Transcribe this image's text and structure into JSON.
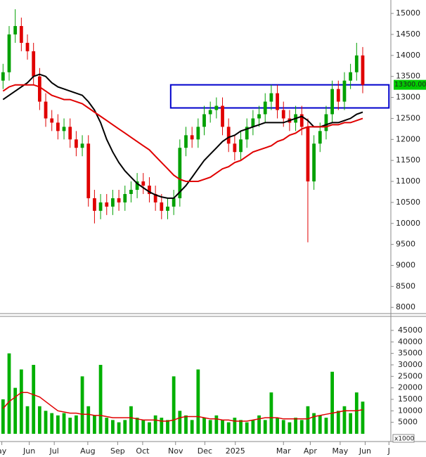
{
  "chart_data": {
    "type": "candlestick",
    "xlim": [
      -0.5,
      63.5
    ],
    "xticks": [
      {
        "value": -0.2,
        "label": "ay"
      },
      {
        "value": 4.3,
        "label": "Jun"
      },
      {
        "value": 8.4,
        "label": "Jul"
      },
      {
        "value": 13.9,
        "label": "Aug"
      },
      {
        "value": 18.8,
        "label": "Sep"
      },
      {
        "value": 22.9,
        "label": "Oct"
      },
      {
        "value": 28.3,
        "label": "Nov"
      },
      {
        "value": 33.1,
        "label": "Dec"
      },
      {
        "value": 38.1,
        "label": "2025"
      },
      {
        "value": 46,
        "label": "Mar"
      },
      {
        "value": 50.4,
        "label": "Apr"
      },
      {
        "value": 55.3,
        "label": "May"
      },
      {
        "value": 59.4,
        "label": "Jun"
      },
      {
        "value": 63.3,
        "label": "J"
      }
    ],
    "ylim": [
      7870,
      15320
    ],
    "yticks": [
      8000,
      8500,
      9000,
      9500,
      10000,
      10500,
      11000,
      11500,
      12000,
      12500,
      13000,
      13500,
      14000,
      14500,
      15000
    ],
    "up_color": "#00a000",
    "down_color": "#e00000",
    "open": [
      13400,
      13600,
      14500,
      14700,
      14300,
      14100,
      13500,
      12900,
      12500,
      12400,
      12200,
      12300,
      12000,
      11800,
      11900,
      10600,
      10300,
      10500,
      10400,
      10600,
      10500,
      10700,
      10800,
      11000,
      10900,
      10700,
      10500,
      10300,
      10400,
      10600,
      11800,
      12100,
      12000,
      12300,
      12600,
      12700,
      12800,
      12300,
      11900,
      11700,
      12000,
      12300,
      12500,
      12600,
      12900,
      13100,
      12700,
      12500,
      12400,
      12600,
      12300,
      11000,
      11900,
      12200,
      12600,
      13200,
      12900,
      13400,
      13600,
      14000
    ],
    "high": [
      13800,
      14700,
      15100,
      14900,
      14500,
      14300,
      13700,
      13100,
      12700,
      12600,
      12500,
      12500,
      12200,
      12100,
      12100,
      10800,
      10700,
      10700,
      10800,
      10800,
      10900,
      11000,
      11200,
      11200,
      11100,
      10900,
      10700,
      10600,
      10800,
      12000,
      12300,
      12300,
      12500,
      12800,
      12900,
      13000,
      13000,
      12500,
      12100,
      12200,
      12500,
      12700,
      12800,
      13100,
      13300,
      13300,
      12900,
      12700,
      12800,
      12800,
      12500,
      12100,
      12400,
      12800,
      13400,
      13400,
      13600,
      13800,
      14300,
      14200
    ],
    "low": [
      13200,
      13400,
      14300,
      14100,
      13900,
      13300,
      12700,
      12300,
      12200,
      12000,
      12000,
      11800,
      11600,
      11600,
      10400,
      10000,
      10100,
      10200,
      10200,
      10300,
      10300,
      10500,
      10600,
      10700,
      10500,
      10300,
      10100,
      10100,
      10200,
      10400,
      11600,
      11800,
      11800,
      12100,
      12400,
      12500,
      12100,
      11700,
      11500,
      11500,
      11800,
      12100,
      12300,
      12400,
      12700,
      12500,
      12300,
      12200,
      12200,
      12100,
      9550,
      10800,
      11700,
      12000,
      12400,
      12700,
      12700,
      13200,
      13400,
      13100
    ],
    "close": [
      13600,
      14500,
      14700,
      14300,
      14100,
      13500,
      12900,
      12500,
      12400,
      12200,
      12300,
      12000,
      11800,
      11900,
      10600,
      10300,
      10500,
      10400,
      10600,
      10500,
      10700,
      10800,
      11000,
      10900,
      10700,
      10500,
      10300,
      10400,
      10600,
      11800,
      12100,
      12000,
      12300,
      12600,
      12700,
      12800,
      12300,
      11900,
      11700,
      12000,
      12300,
      12500,
      12600,
      12900,
      13100,
      12700,
      12500,
      12400,
      12600,
      12300,
      11000,
      11900,
      12200,
      12600,
      13200,
      12900,
      13400,
      13600,
      14000,
      13300
    ],
    "moving_averages": [
      {
        "color": "#000000",
        "values": [
          12950,
          13050,
          13150,
          13250,
          13350,
          13500,
          13550,
          13500,
          13350,
          13250,
          13200,
          13150,
          13100,
          13050,
          12900,
          12700,
          12400,
          12000,
          11700,
          11450,
          11250,
          11100,
          10950,
          10850,
          10750,
          10680,
          10630,
          10600,
          10600,
          10750,
          10900,
          11100,
          11300,
          11500,
          11650,
          11800,
          11950,
          12050,
          12100,
          12200,
          12250,
          12300,
          12350,
          12400,
          12400,
          12400,
          12400,
          12450,
          12500,
          12550,
          12450,
          12300,
          12300,
          12350,
          12400,
          12400,
          12450,
          12500,
          12600,
          12650
        ]
      },
      {
        "color": "#e00000",
        "values": [
          13150,
          13250,
          13300,
          13300,
          13300,
          13300,
          13250,
          13150,
          13050,
          13000,
          12950,
          12950,
          12900,
          12850,
          12750,
          12650,
          12550,
          12450,
          12350,
          12250,
          12150,
          12050,
          11950,
          11850,
          11750,
          11600,
          11450,
          11300,
          11150,
          11050,
          11000,
          11000,
          11000,
          11050,
          11100,
          11200,
          11300,
          11350,
          11450,
          11500,
          11600,
          11700,
          11750,
          11800,
          11850,
          11950,
          12000,
          12100,
          12150,
          12250,
          12300,
          12300,
          12300,
          12300,
          12350,
          12350,
          12400,
          12400,
          12450,
          12500
        ]
      }
    ],
    "range_box": {
      "x": [
        27.5,
        63.3
      ],
      "y": [
        12750,
        13300
      ],
      "color": "#0000cc"
    },
    "last_price": {
      "value": 13300,
      "label": "13300.00",
      "color": "#00cc00"
    },
    "volume": {
      "color": "#00b000",
      "values": [
        15000,
        35000,
        20000,
        28000,
        12000,
        30000,
        12000,
        10000,
        9000,
        8000,
        9000,
        7000,
        8000,
        25000,
        12000,
        8000,
        30000,
        7000,
        6000,
        5000,
        6000,
        12000,
        7000,
        6000,
        5000,
        8000,
        7000,
        6000,
        25000,
        10000,
        8000,
        6000,
        28000,
        7000,
        6000,
        8000,
        6000,
        5000,
        7000,
        6000,
        5000,
        6000,
        8000,
        6000,
        18000,
        7000,
        6000,
        5000,
        7000,
        6000,
        12000,
        9000,
        8000,
        7000,
        27000,
        10000,
        12000,
        9000,
        18000,
        14000
      ],
      "ma": {
        "color": "#e00000",
        "values": [
          11000,
          14000,
          16000,
          18000,
          18000,
          17000,
          16000,
          14000,
          12000,
          10000,
          9500,
          9000,
          9000,
          8500,
          8500,
          8000,
          8000,
          7500,
          7000,
          7000,
          7000,
          7000,
          6500,
          6000,
          6000,
          6000,
          5500,
          5500,
          6000,
          7000,
          7500,
          7500,
          7500,
          7000,
          6500,
          6500,
          6000,
          6000,
          5500,
          5500,
          5500,
          6000,
          6500,
          7000,
          7000,
          7000,
          6500,
          6500,
          6500,
          6500,
          6500,
          7500,
          8000,
          8500,
          9000,
          9500,
          10000,
          10000,
          10000,
          10500
        ]
      },
      "ylim": [
        0,
        51100
      ],
      "yticks": [
        5000,
        10000,
        15000,
        20000,
        25000,
        30000,
        35000,
        40000,
        45000
      ],
      "unit_label": "x1000"
    }
  }
}
